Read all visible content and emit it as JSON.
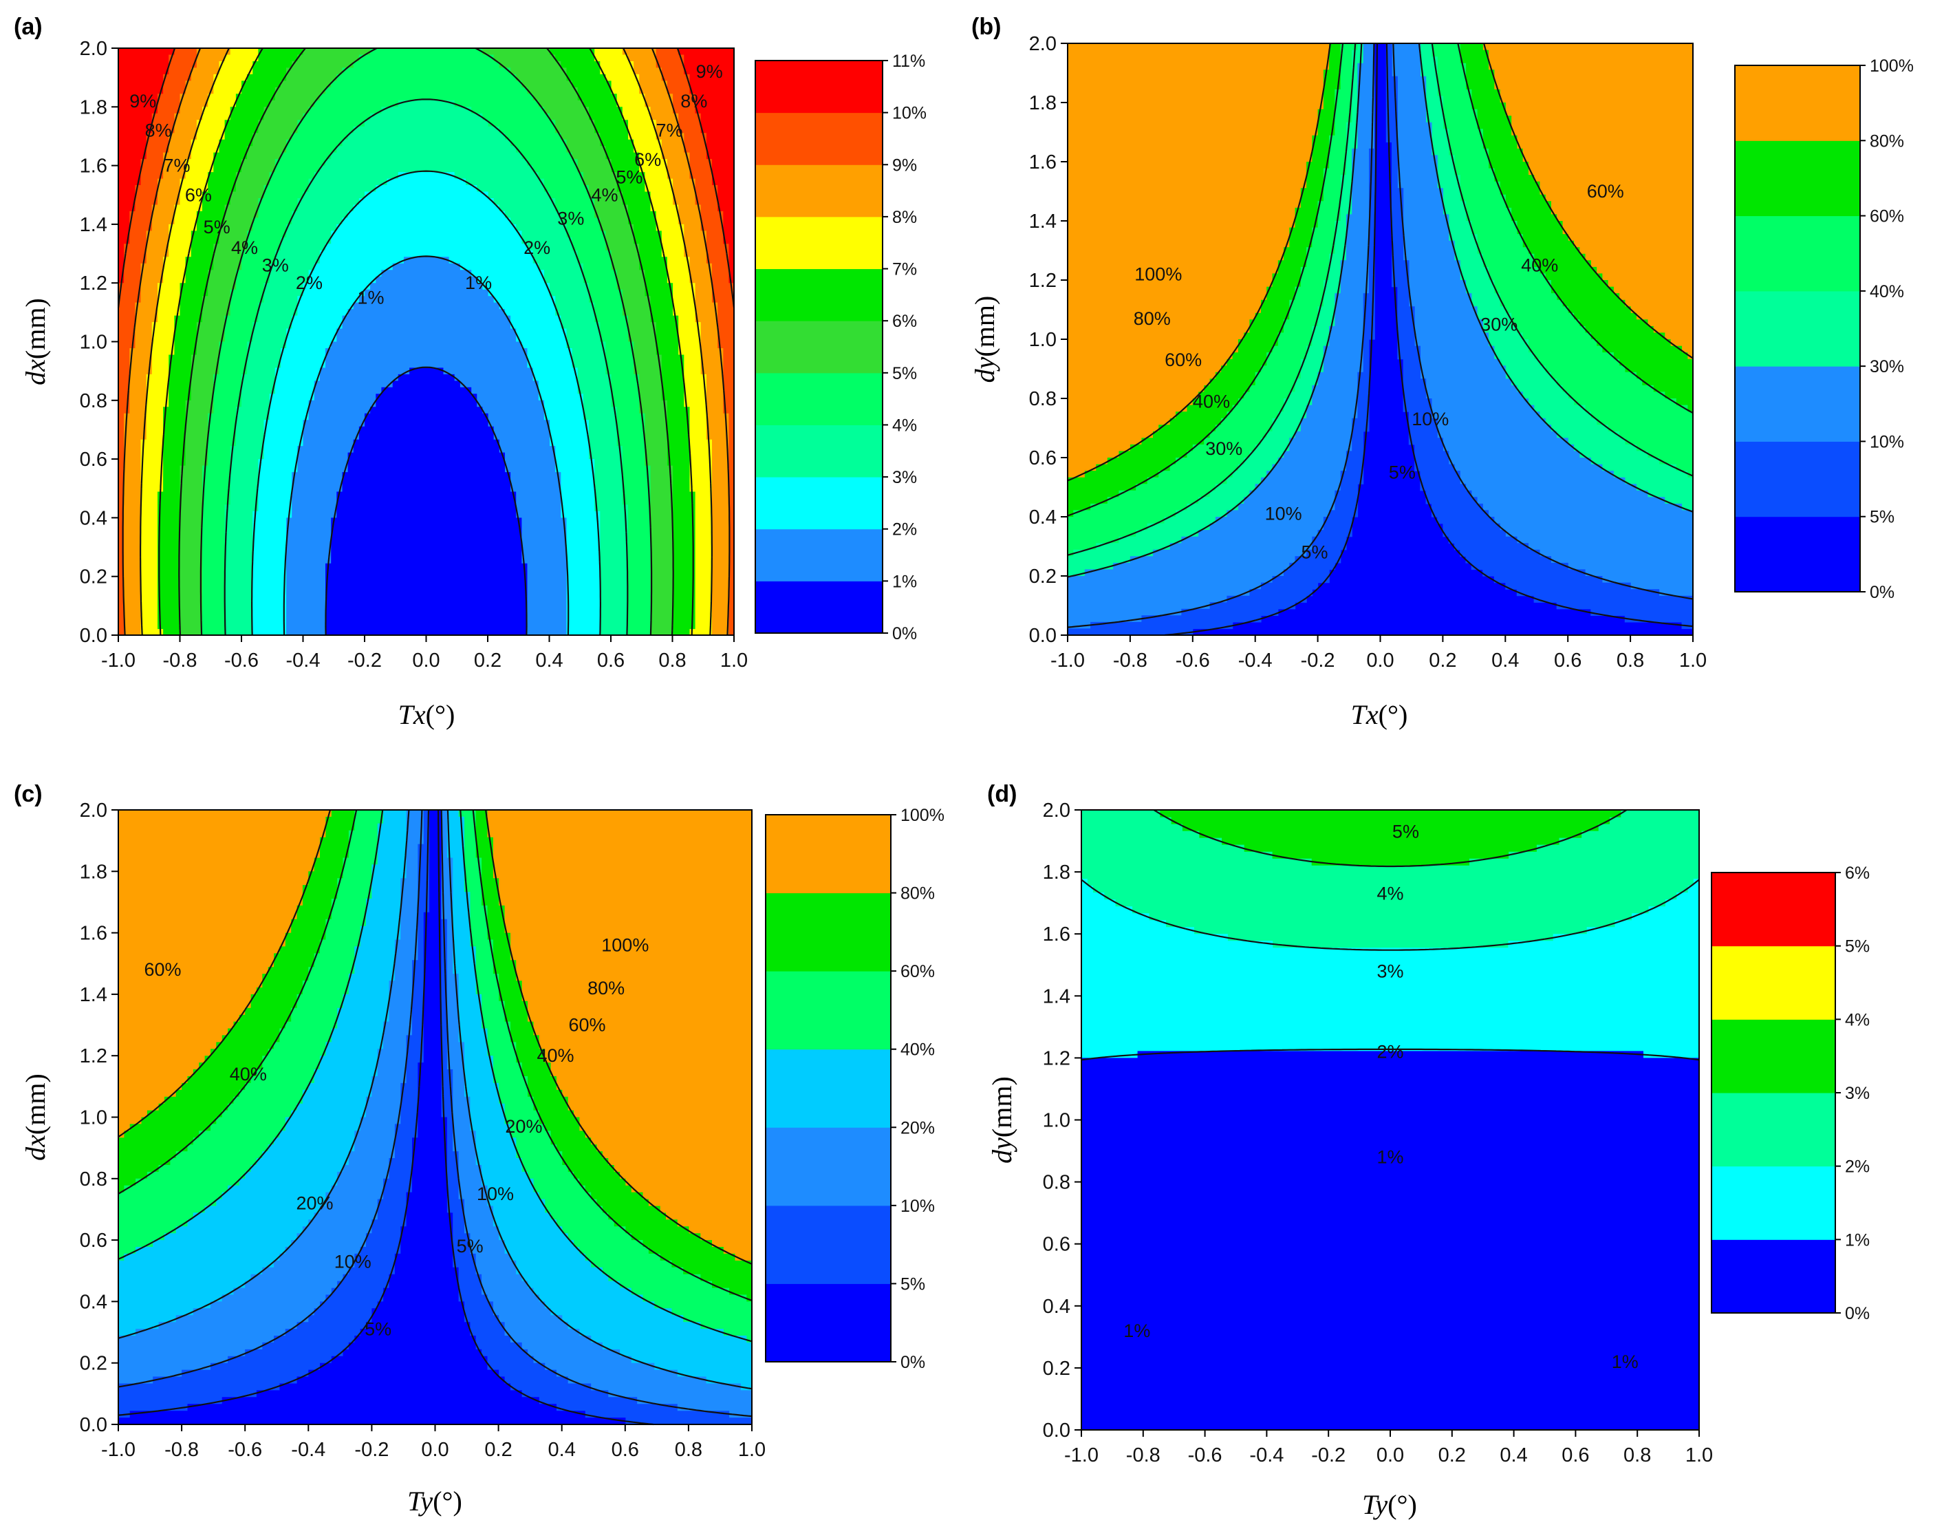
{
  "figure": {
    "title": ""
  },
  "colors": {
    "blue_dark": "#0000ff",
    "blue_mid": "#0a4dff",
    "blue_light": "#1e8cff",
    "cyan_light": "#00ccff",
    "cyan": "#00ffff",
    "teal": "#00ff99",
    "green_light": "#00ff66",
    "green": "#00e600",
    "green_mid": "#33dd33",
    "yellow": "#ffff00",
    "orange": "#ffa000",
    "orange_red": "#ff5000",
    "red": "#ff0000",
    "contour": "#111111"
  },
  "chart_data": [
    {
      "id": "a",
      "type": "contour",
      "panel_label": "(a)",
      "xlabel_var": "Tx",
      "xlabel_unit": "(°)",
      "ylabel_var": "dx",
      "ylabel_unit": "(mm)",
      "xlim": [
        -1.0,
        1.0
      ],
      "ylim": [
        0.0,
        2.0
      ],
      "xticks": [
        "-1.0",
        "-0.8",
        "-0.6",
        "-0.4",
        "-0.2",
        "0.0",
        "0.2",
        "0.4",
        "0.6",
        "0.8",
        "1.0"
      ],
      "yticks": [
        "0.0",
        "0.2",
        "0.4",
        "0.6",
        "0.8",
        "1.0",
        "1.2",
        "1.4",
        "1.6",
        "1.8",
        "2.0"
      ],
      "levels": [
        0,
        1,
        2,
        3,
        4,
        5,
        6,
        7,
        8,
        9,
        10,
        11
      ],
      "colorbar_labels": [
        "0%",
        "1%",
        "2%",
        "3%",
        "4%",
        "5%",
        "6%",
        "7%",
        "8%",
        "9%",
        "10%",
        "11%"
      ],
      "contour_labels": [
        {
          "text": "1%",
          "x": -0.18,
          "y": 1.15
        },
        {
          "text": "1%",
          "x": 0.17,
          "y": 1.2
        },
        {
          "text": "2%",
          "x": -0.38,
          "y": 1.2
        },
        {
          "text": "2%",
          "x": 0.36,
          "y": 1.32
        },
        {
          "text": "3%",
          "x": -0.49,
          "y": 1.26
        },
        {
          "text": "3%",
          "x": 0.47,
          "y": 1.42
        },
        {
          "text": "4%",
          "x": -0.59,
          "y": 1.32
        },
        {
          "text": "4%",
          "x": 0.58,
          "y": 1.5
        },
        {
          "text": "5%",
          "x": -0.68,
          "y": 1.39
        },
        {
          "text": "5%",
          "x": 0.66,
          "y": 1.56
        },
        {
          "text": "6%",
          "x": -0.74,
          "y": 1.5
        },
        {
          "text": "6%",
          "x": 0.72,
          "y": 1.62
        },
        {
          "text": "7%",
          "x": -0.81,
          "y": 1.6
        },
        {
          "text": "7%",
          "x": 0.79,
          "y": 1.72
        },
        {
          "text": "8%",
          "x": -0.87,
          "y": 1.72
        },
        {
          "text": "8%",
          "x": 0.87,
          "y": 1.82
        },
        {
          "text": "9%",
          "x": -0.92,
          "y": 1.82
        },
        {
          "text": "9%",
          "x": 0.92,
          "y": 1.92
        }
      ]
    },
    {
      "id": "b",
      "type": "contour",
      "panel_label": "(b)",
      "xlabel_var": "Tx",
      "xlabel_unit": "(°)",
      "ylabel_var": "dy",
      "ylabel_unit": "(mm)",
      "xlim": [
        -1.0,
        1.0
      ],
      "ylim": [
        0.0,
        2.0
      ],
      "xticks": [
        "-1.0",
        "-0.8",
        "-0.6",
        "-0.4",
        "-0.2",
        "0.0",
        "0.2",
        "0.4",
        "0.6",
        "0.8",
        "1.0"
      ],
      "yticks": [
        "0.0",
        "0.2",
        "0.4",
        "0.6",
        "0.8",
        "1.0",
        "1.2",
        "1.4",
        "1.6",
        "1.8",
        "2.0"
      ],
      "levels": [
        0,
        5,
        10,
        30,
        40,
        60,
        80,
        100
      ],
      "colorbar_labels": [
        "0%",
        "5%",
        "10%",
        "30%",
        "40%",
        "60%",
        "80%",
        "100%"
      ],
      "contour_labels": [
        {
          "text": "5%",
          "x": -0.21,
          "y": 0.28
        },
        {
          "text": "5%",
          "x": 0.07,
          "y": 0.55
        },
        {
          "text": "10%",
          "x": -0.31,
          "y": 0.41
        },
        {
          "text": "10%",
          "x": 0.16,
          "y": 0.73
        },
        {
          "text": "30%",
          "x": -0.5,
          "y": 0.63
        },
        {
          "text": "30%",
          "x": 0.38,
          "y": 1.05
        },
        {
          "text": "40%",
          "x": -0.54,
          "y": 0.79
        },
        {
          "text": "40%",
          "x": 0.51,
          "y": 1.25
        },
        {
          "text": "60%",
          "x": -0.63,
          "y": 0.93
        },
        {
          "text": "60%",
          "x": 0.72,
          "y": 1.5
        },
        {
          "text": "80%",
          "x": -0.73,
          "y": 1.07
        },
        {
          "text": "100%",
          "x": -0.71,
          "y": 1.22
        }
      ]
    },
    {
      "id": "c",
      "type": "contour",
      "panel_label": "(c)",
      "xlabel_var": "Ty",
      "xlabel_unit": "(°)",
      "ylabel_var": "dx",
      "ylabel_unit": "(mm)",
      "xlim": [
        -1.0,
        1.0
      ],
      "ylim": [
        0.0,
        2.0
      ],
      "xticks": [
        "-1.0",
        "-0.8",
        "-0.6",
        "-0.4",
        "-0.2",
        "0.0",
        "0.2",
        "0.4",
        "0.6",
        "0.8",
        "1.0"
      ],
      "yticks": [
        "0.0",
        "0.2",
        "0.4",
        "0.6",
        "0.8",
        "1.0",
        "1.2",
        "1.4",
        "1.6",
        "1.8",
        "2.0"
      ],
      "levels": [
        0,
        5,
        10,
        20,
        40,
        60,
        80,
        100
      ],
      "colorbar_labels": [
        "0%",
        "5%",
        "10%",
        "20%",
        "40%",
        "60%",
        "80%",
        "100%"
      ],
      "contour_labels": [
        {
          "text": "5%",
          "x": -0.18,
          "y": 0.31
        },
        {
          "text": "5%",
          "x": 0.11,
          "y": 0.58
        },
        {
          "text": "10%",
          "x": -0.26,
          "y": 0.53
        },
        {
          "text": "10%",
          "x": 0.19,
          "y": 0.75
        },
        {
          "text": "20%",
          "x": -0.38,
          "y": 0.72
        },
        {
          "text": "20%",
          "x": 0.28,
          "y": 0.97
        },
        {
          "text": "40%",
          "x": -0.59,
          "y": 1.14
        },
        {
          "text": "40%",
          "x": 0.38,
          "y": 1.2
        },
        {
          "text": "60%",
          "x": -0.86,
          "y": 1.48
        },
        {
          "text": "60%",
          "x": 0.48,
          "y": 1.3
        },
        {
          "text": "80%",
          "x": 0.54,
          "y": 1.42
        },
        {
          "text": "100%",
          "x": 0.6,
          "y": 1.56
        }
      ]
    },
    {
      "id": "d",
      "type": "contour",
      "panel_label": "(d)",
      "xlabel_var": "Ty",
      "xlabel_unit": "(°)",
      "ylabel_var": "dy",
      "ylabel_unit": "(mm)",
      "xlim": [
        -1.0,
        1.0
      ],
      "ylim": [
        0.0,
        2.0
      ],
      "xticks": [
        "-1.0",
        "-0.8",
        "-0.6",
        "-0.4",
        "-0.2",
        "0.0",
        "0.2",
        "0.4",
        "0.6",
        "0.8",
        "1.0"
      ],
      "yticks": [
        "0.0",
        "0.2",
        "0.4",
        "0.6",
        "0.8",
        "1.0",
        "1.2",
        "1.4",
        "1.6",
        "1.8",
        "2.0"
      ],
      "levels": [
        0,
        1,
        2,
        3,
        4,
        5,
        6
      ],
      "colorbar_labels": [
        "0%",
        "1%",
        "2%",
        "3%",
        "4%",
        "5%",
        "6%"
      ],
      "contour_labels": [
        {
          "text": "1%",
          "x": 0.0,
          "y": 0.88
        },
        {
          "text": "2%",
          "x": 0.0,
          "y": 1.22
        },
        {
          "text": "3%",
          "x": 0.0,
          "y": 1.48
        },
        {
          "text": "4%",
          "x": 0.0,
          "y": 1.73
        },
        {
          "text": "5%",
          "x": 0.05,
          "y": 1.93
        },
        {
          "text": "1%",
          "x": -0.82,
          "y": 0.32
        },
        {
          "text": "1%",
          "x": 0.76,
          "y": 0.22
        }
      ]
    }
  ]
}
